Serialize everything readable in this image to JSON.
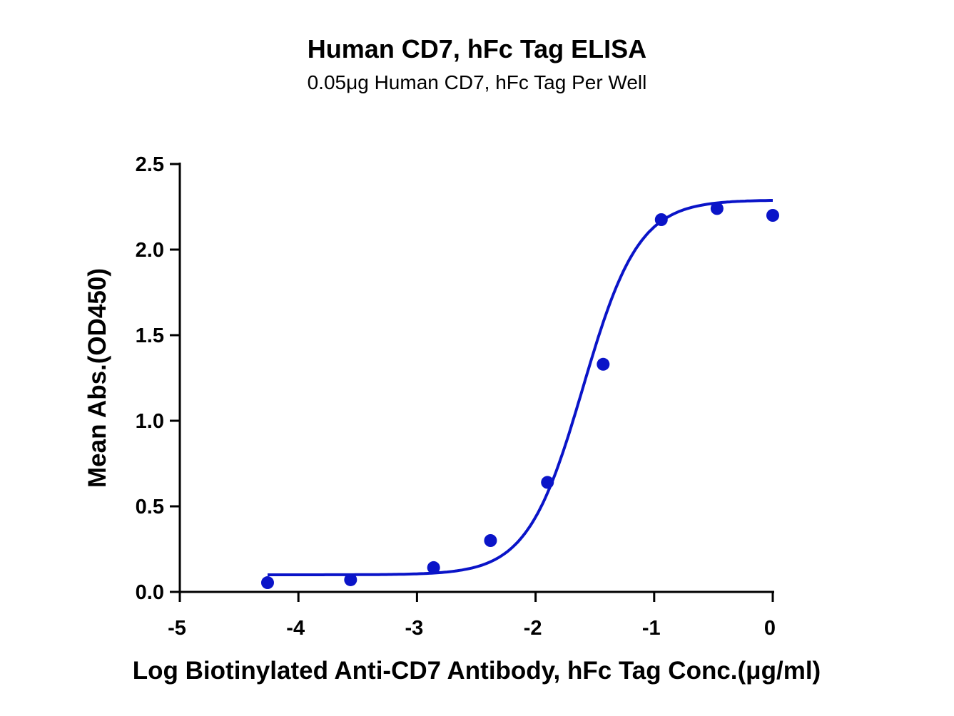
{
  "chart_data": {
    "type": "scatter",
    "title": "Human CD7, hFc Tag ELISA",
    "subtitle": "0.05μg Human CD7, hFc Tag Per Well",
    "xlabel": "Log Biotinylated Anti-CD7 Antibody, hFc Tag Conc.(μg/ml)",
    "ylabel": "Mean Abs.(OD450)",
    "xlim": [
      -5,
      0
    ],
    "ylim": [
      0,
      2.5
    ],
    "xticks": [
      "-5",
      "-4",
      "-3",
      "-2",
      "-1",
      "0"
    ],
    "yticks": [
      "0.0",
      "0.5",
      "1.0",
      "1.5",
      "2.0",
      "2.5"
    ],
    "grid": false,
    "color": "#0a14c8",
    "points": {
      "x": [
        -4.26,
        -3.56,
        -2.86,
        -2.38,
        -1.9,
        -1.43,
        -0.94,
        -0.47,
        0.0
      ],
      "y": [
        0.054,
        0.071,
        0.142,
        0.3,
        0.64,
        1.33,
        2.175,
        2.24,
        2.2
      ]
    },
    "fit": {
      "model": "4PL",
      "bottom": 0.1,
      "top": 2.29,
      "logEC50": -1.6,
      "hill": 1.85,
      "x_range": [
        -4.26,
        0.0
      ]
    }
  }
}
